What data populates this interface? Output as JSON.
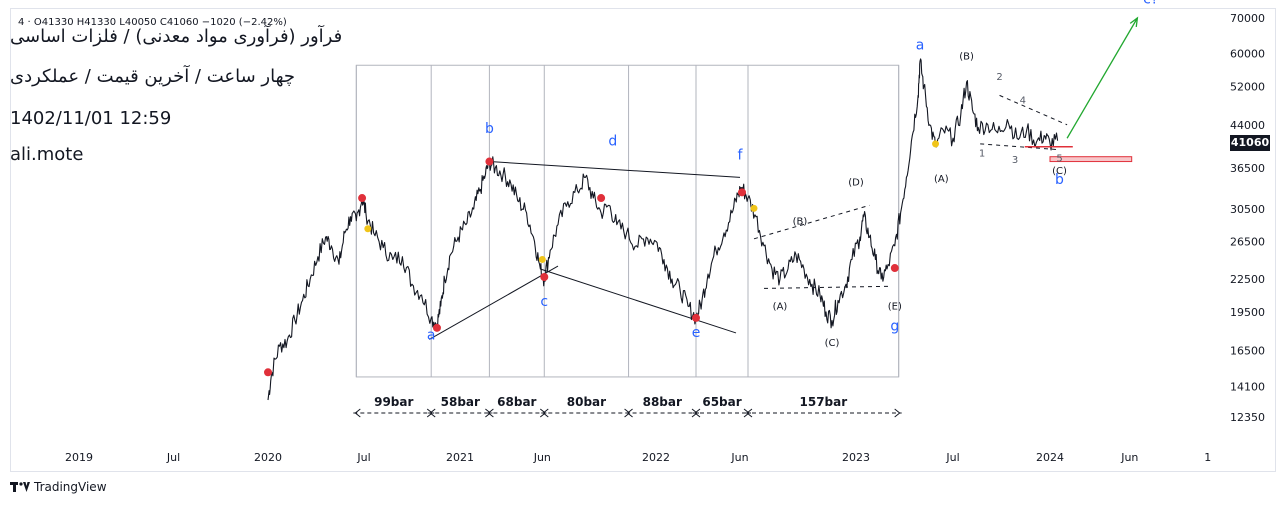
{
  "header": {
    "ohlc": "4  ·  O41330  H41330  L40050  C41060  −1020 (−2.42%)",
    "title": "فرآور (فرآوری مواد معدنی) / فلزات اساسی",
    "subtitle": "چهار ساعت / آخرین قیمت / عملکردی",
    "datetime": "1402/11/01 12:59",
    "author": "ali.mote"
  },
  "price_badge": "41060",
  "footer": {
    "brand": "TradingView"
  },
  "colors": {
    "wave_label": "#2962ff",
    "pivot": "#e0303a",
    "marker": "#f0c419",
    "target_arrow": "#22a830",
    "support": "#e0303a"
  },
  "chart_data": {
    "type": "line",
    "title": "",
    "y_ticks": [
      70000,
      60000,
      52000,
      44000,
      36500,
      30500,
      26500,
      22500,
      19500,
      16500,
      14100,
      12350
    ],
    "x_ticks": [
      {
        "t": 2019.0,
        "label": "2019"
      },
      {
        "t": 2019.5,
        "label": "Jul"
      },
      {
        "t": 2020.0,
        "label": "2020"
      },
      {
        "t": 2020.5,
        "label": "Jul"
      },
      {
        "t": 2021.0,
        "label": "2021"
      },
      {
        "t": 2021.42,
        "label": "Jun"
      },
      {
        "t": 2022.0,
        "label": "2022"
      },
      {
        "t": 2022.42,
        "label": "Jun"
      },
      {
        "t": 2023.0,
        "label": "2023"
      },
      {
        "t": 2023.5,
        "label": "Jul"
      },
      {
        "t": 2024.0,
        "label": "2024"
      },
      {
        "t": 2024.42,
        "label": "Jun"
      },
      {
        "t": 2024.83,
        "label": "1"
      }
    ],
    "price_series": [
      [
        2020.0,
        13300
      ],
      [
        2020.02,
        15000
      ],
      [
        2020.06,
        16800
      ],
      [
        2020.1,
        17200
      ],
      [
        2020.14,
        18800
      ],
      [
        2020.18,
        20500
      ],
      [
        2020.22,
        22500
      ],
      [
        2020.26,
        24800
      ],
      [
        2020.3,
        27000
      ],
      [
        2020.33,
        26000
      ],
      [
        2020.37,
        24000
      ],
      [
        2020.4,
        27500
      ],
      [
        2020.43,
        29500
      ],
      [
        2020.46,
        29000
      ],
      [
        2020.49,
        32000
      ],
      [
        2020.51,
        30000
      ],
      [
        2020.55,
        27500
      ],
      [
        2020.6,
        25800
      ],
      [
        2020.65,
        24500
      ],
      [
        2020.7,
        24800
      ],
      [
        2020.75,
        22000
      ],
      [
        2020.8,
        21000
      ],
      [
        2020.85,
        19000
      ],
      [
        2020.88,
        18500
      ],
      [
        2020.9,
        20000
      ],
      [
        2020.92,
        22500
      ],
      [
        2020.95,
        25000
      ],
      [
        2020.99,
        27000
      ],
      [
        2021.03,
        28500
      ],
      [
        2021.07,
        30500
      ],
      [
        2021.1,
        33000
      ],
      [
        2021.13,
        35500
      ],
      [
        2021.15,
        37500
      ],
      [
        2021.18,
        36500
      ],
      [
        2021.22,
        35500
      ],
      [
        2021.26,
        34000
      ],
      [
        2021.3,
        31500
      ],
      [
        2021.34,
        30000
      ],
      [
        2021.38,
        26500
      ],
      [
        2021.41,
        23500
      ],
      [
        2021.43,
        22500
      ],
      [
        2021.46,
        25500
      ],
      [
        2021.5,
        28500
      ],
      [
        2021.55,
        31500
      ],
      [
        2021.6,
        33000
      ],
      [
        2021.64,
        35000
      ],
      [
        2021.68,
        32000
      ],
      [
        2021.72,
        30000
      ],
      [
        2021.76,
        31000
      ],
      [
        2021.8,
        28500
      ],
      [
        2021.85,
        27500
      ],
      [
        2021.9,
        26000
      ],
      [
        2021.95,
        27000
      ],
      [
        2022.0,
        26500
      ],
      [
        2022.04,
        24500
      ],
      [
        2022.08,
        22500
      ],
      [
        2022.12,
        21500
      ],
      [
        2022.16,
        20000
      ],
      [
        2022.2,
        19000
      ],
      [
        2022.23,
        20500
      ],
      [
        2022.26,
        23000
      ],
      [
        2022.3,
        25500
      ],
      [
        2022.34,
        27500
      ],
      [
        2022.38,
        30000
      ],
      [
        2022.41,
        32500
      ],
      [
        2022.43,
        33500
      ],
      [
        2022.46,
        32000
      ],
      [
        2022.5,
        29500
      ],
      [
        2022.54,
        26000
      ],
      [
        2022.58,
        23500
      ],
      [
        2022.62,
        22500
      ],
      [
        2022.66,
        23500
      ],
      [
        2022.7,
        25000
      ],
      [
        2022.74,
        23500
      ],
      [
        2022.78,
        22000
      ],
      [
        2022.82,
        21000
      ],
      [
        2022.85,
        19500
      ],
      [
        2022.88,
        18800
      ],
      [
        2022.91,
        20500
      ],
      [
        2022.95,
        22000
      ],
      [
        2022.98,
        24500
      ],
      [
        2023.02,
        27000
      ],
      [
        2023.04,
        29500
      ],
      [
        2023.07,
        27000
      ],
      [
        2023.1,
        24500
      ],
      [
        2023.13,
        22500
      ],
      [
        2023.16,
        23500
      ],
      [
        2023.2,
        26000
      ],
      [
        2023.23,
        30000
      ],
      [
        2023.26,
        35000
      ],
      [
        2023.29,
        42000
      ],
      [
        2023.32,
        50000
      ],
      [
        2023.33,
        58000
      ],
      [
        2023.35,
        52000
      ],
      [
        2023.38,
        44000
      ],
      [
        2023.41,
        40000
      ],
      [
        2023.45,
        43000
      ],
      [
        2023.5,
        41500
      ],
      [
        2023.54,
        46000
      ],
      [
        2023.57,
        53000
      ],
      [
        2023.6,
        47000
      ],
      [
        2023.63,
        43500
      ],
      [
        2023.68,
        44000
      ],
      [
        2023.73,
        42500
      ],
      [
        2023.78,
        45000
      ],
      [
        2023.83,
        41500
      ],
      [
        2023.88,
        43000
      ],
      [
        2023.93,
        40800
      ],
      [
        2023.97,
        42000
      ],
      [
        2024.0,
        40600
      ],
      [
        2024.04,
        41060
      ]
    ],
    "wave_labels": [
      {
        "t": 2020.85,
        "p": 17300,
        "text": "a",
        "color": "blue",
        "size": 14
      },
      {
        "t": 2021.15,
        "p": 42500,
        "text": "b",
        "color": "blue",
        "size": 14
      },
      {
        "t": 2021.43,
        "p": 20000,
        "text": "c",
        "color": "blue",
        "size": 14
      },
      {
        "t": 2021.78,
        "p": 40200,
        "text": "d",
        "color": "blue",
        "size": 14
      },
      {
        "t": 2022.2,
        "p": 17500,
        "text": "e",
        "color": "blue",
        "size": 14
      },
      {
        "t": 2022.42,
        "p": 37800,
        "text": "f",
        "color": "blue",
        "size": 14
      },
      {
        "t": 2023.2,
        "p": 18000,
        "text": "g",
        "color": "blue",
        "size": 14
      },
      {
        "t": 2023.33,
        "p": 61000,
        "text": "a",
        "color": "blue",
        "size": 14
      },
      {
        "t": 2024.05,
        "p": 34000,
        "text": "b",
        "color": "blue",
        "size": 14
      },
      {
        "t": 2024.53,
        "p": 74500,
        "text": "c?",
        "color": "blue",
        "size": 14
      },
      {
        "t": 2022.62,
        "p": 19700,
        "text": "(A)",
        "color": "black",
        "size": 10
      },
      {
        "t": 2022.72,
        "p": 28500,
        "text": "(B)",
        "color": "black",
        "size": 10
      },
      {
        "t": 2022.88,
        "p": 16800,
        "text": "(C)",
        "color": "black",
        "size": 10
      },
      {
        "t": 2023.0,
        "p": 33800,
        "text": "(D)",
        "color": "black",
        "size": 10
      },
      {
        "t": 2023.2,
        "p": 19700,
        "text": "(E)",
        "color": "black",
        "size": 10
      },
      {
        "t": 2023.44,
        "p": 34300,
        "text": "(A)",
        "color": "black",
        "size": 10
      },
      {
        "t": 2023.57,
        "p": 58500,
        "text": "(B)",
        "color": "black",
        "size": 10
      },
      {
        "t": 2024.05,
        "p": 35500,
        "text": "(C)",
        "color": "black",
        "size": 10
      },
      {
        "t": 2023.74,
        "p": 53500,
        "text": "2",
        "color": "grey",
        "size": 10
      },
      {
        "t": 2023.86,
        "p": 48300,
        "text": "4",
        "color": "grey",
        "size": 10
      },
      {
        "t": 2023.65,
        "p": 38300,
        "text": "1",
        "color": "grey",
        "size": 10
      },
      {
        "t": 2023.82,
        "p": 37300,
        "text": "3",
        "color": "grey",
        "size": 10
      },
      {
        "t": 2024.05,
        "p": 37500,
        "text": "5",
        "color": "grey",
        "size": 10
      }
    ],
    "pivots": [
      [
        2020.0,
        15000
      ],
      [
        2020.49,
        32000
      ],
      [
        2020.88,
        18200
      ],
      [
        2021.15,
        37500
      ],
      [
        2021.43,
        22700
      ],
      [
        2021.72,
        32000
      ],
      [
        2022.2,
        19000
      ],
      [
        2022.43,
        32800
      ],
      [
        2023.2,
        23600
      ]
    ],
    "markers": [
      [
        2020.52,
        28000
      ],
      [
        2021.42,
        24500
      ],
      [
        2022.49,
        30600
      ],
      [
        2023.41,
        40500
      ]
    ],
    "segments": [
      {
        "t1": 2020.84,
        "p1": 17300,
        "t2": 2021.5,
        "p2": 23800
      },
      {
        "t1": 2021.15,
        "p1": 37500,
        "t2": 2022.42,
        "p2": 35000
      },
      {
        "t1": 2021.41,
        "p1": 23500,
        "t2": 2022.4,
        "p2": 17800
      },
      {
        "t1": 2022.49,
        "p1": 26800,
        "t2": 2023.07,
        "p2": 31000,
        "dash": true
      },
      {
        "t1": 2022.54,
        "p1": 21600,
        "t2": 2023.17,
        "p2": 21800,
        "dash": true
      },
      {
        "t1": 2023.74,
        "p1": 50000,
        "t2": 2024.09,
        "p2": 44000,
        "dash": true
      },
      {
        "t1": 2023.64,
        "p1": 40500,
        "t2": 2024.04,
        "p2": 39500,
        "dash": true
      }
    ],
    "target_arrow": {
      "t1": 2024.09,
      "p1": 41500,
      "t2": 2024.46,
      "p2": 70000
    },
    "support_line": {
      "t1": 2023.87,
      "t2": 2024.12,
      "p": 40000
    },
    "support_box": {
      "t1": 2024.0,
      "t2": 2024.43,
      "p1": 37500,
      "p2": 38300
    },
    "box": {
      "t1": 2020.46,
      "t2": 2023.22,
      "p1": 14700,
      "p2": 57000
    },
    "time_dividers": [
      2020.46,
      2020.85,
      2021.15,
      2021.43,
      2021.86,
      2022.2,
      2022.46,
      2023.22
    ],
    "bar_counts": [
      "99bar",
      "58bar",
      "68bar",
      "80bar",
      "88bar",
      "65bar",
      "157bar"
    ]
  }
}
